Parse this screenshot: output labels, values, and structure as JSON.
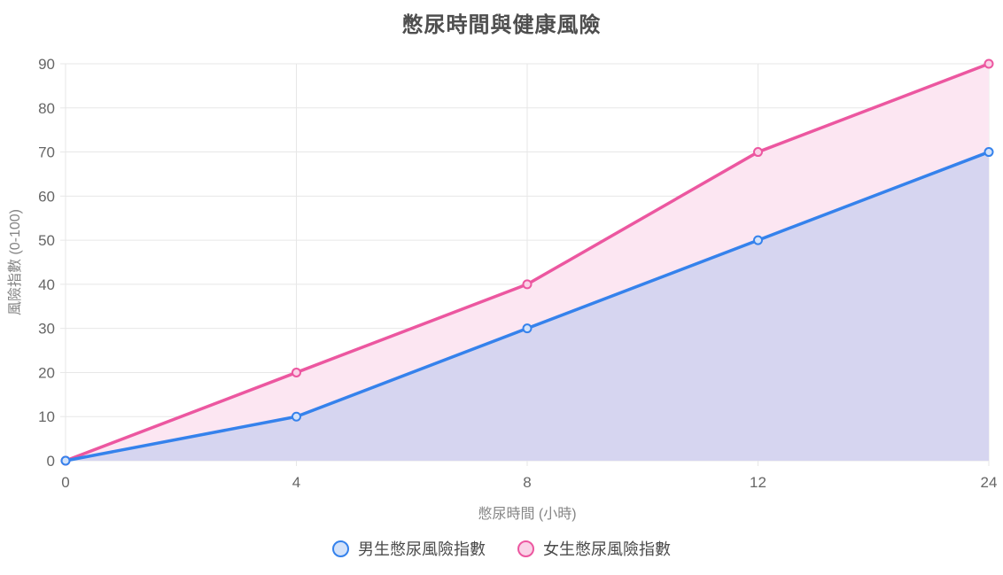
{
  "chart_data": {
    "type": "area",
    "title": "憋尿時間與健康風險",
    "xlabel": "憋尿時間 (小時)",
    "ylabel": "風險指數 (0-100)",
    "categories": [
      0,
      4,
      8,
      12,
      24
    ],
    "series": [
      {
        "name": "男生憋尿風險指數",
        "values": [
          0,
          10,
          30,
          50,
          70
        ],
        "color": "#3582EC",
        "point_fill": "#D3E2FA",
        "area_fill": "#D6D5F0"
      },
      {
        "name": "女生憋尿風險指數",
        "values": [
          0,
          20,
          40,
          70,
          90
        ],
        "color": "#EC57A0",
        "point_fill": "#FAD2E7",
        "area_fill": "#FCE6F2"
      }
    ],
    "ylim": [
      0,
      90
    ],
    "ytick_step": 10,
    "grid": true,
    "legend_position": "bottom",
    "colors": {
      "tick_label": "#666666",
      "grid_line": "#e7e7e7",
      "axis_title": "#858585",
      "chart_title": "#4e4e4e",
      "legend_text": "#4a4a4a",
      "background": "#ffffff"
    }
  }
}
